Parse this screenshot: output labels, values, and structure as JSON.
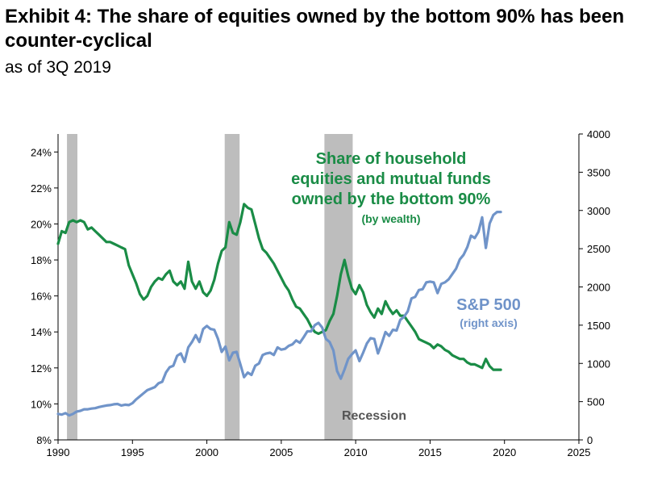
{
  "title": "Exhibit 4: The share of equities owned by the bottom 90% has been counter-cyclical",
  "subtitle": "as of 3Q 2019",
  "colors": {
    "share": "#1a8c46",
    "sp500": "#7094c9",
    "recession": "#bdbdbd",
    "recession_text": "#555555"
  },
  "chart_data": {
    "type": "line",
    "title": "Exhibit 4: The share of equities owned by the bottom 90% has been counter-cyclical",
    "subtitle": "as of 3Q 2019",
    "x_ticks": [
      "1990",
      "1995",
      "2000",
      "2005",
      "2010",
      "2015",
      "2020",
      "2025"
    ],
    "xlim": [
      1990,
      2025
    ],
    "y_left_ticks": [
      "8%",
      "10%",
      "12%",
      "14%",
      "16%",
      "18%",
      "20%",
      "22%",
      "24%"
    ],
    "y_left_lim": [
      8,
      25
    ],
    "y_right_ticks": [
      "0",
      "500",
      "1000",
      "1500",
      "2000",
      "2500",
      "3000",
      "3500",
      "4000"
    ],
    "y_right_lim": [
      0,
      4000
    ],
    "grid": false,
    "recessions": [
      [
        1990.6,
        1991.3
      ],
      [
        2001.2,
        2002.2
      ],
      [
        2007.9,
        2009.8
      ]
    ],
    "recession_label": "Recession",
    "annotations": {
      "share_label": [
        "Share of household",
        "equities and mutual funds",
        "owned by the bottom 90%"
      ],
      "share_sublabel": "(by wealth)",
      "sp_label": "S&P 500",
      "sp_sublabel": "(right axis)"
    },
    "series": [
      {
        "axis": "left",
        "points": [
          [
            1990.0,
            18.9
          ],
          [
            1990.25,
            19.6
          ],
          [
            1990.5,
            19.5
          ],
          [
            1990.75,
            20.1
          ],
          [
            1991.0,
            20.2
          ],
          [
            1991.25,
            20.1
          ],
          [
            1991.5,
            20.2
          ],
          [
            1991.75,
            20.1
          ],
          [
            1992.0,
            19.7
          ],
          [
            1992.25,
            19.8
          ],
          [
            1992.5,
            19.6
          ],
          [
            1992.75,
            19.4
          ],
          [
            1993.0,
            19.2
          ],
          [
            1993.25,
            19.0
          ],
          [
            1993.5,
            19.0
          ],
          [
            1993.75,
            18.9
          ],
          [
            1994.0,
            18.8
          ],
          [
            1994.25,
            18.7
          ],
          [
            1994.5,
            18.6
          ],
          [
            1994.75,
            17.7
          ],
          [
            1995.0,
            17.2
          ],
          [
            1995.25,
            16.7
          ],
          [
            1995.5,
            16.1
          ],
          [
            1995.75,
            15.8
          ],
          [
            1996.0,
            16.0
          ],
          [
            1996.25,
            16.5
          ],
          [
            1996.5,
            16.8
          ],
          [
            1996.75,
            17.0
          ],
          [
            1997.0,
            16.9
          ],
          [
            1997.25,
            17.2
          ],
          [
            1997.5,
            17.4
          ],
          [
            1997.75,
            16.8
          ],
          [
            1998.0,
            16.6
          ],
          [
            1998.25,
            16.8
          ],
          [
            1998.5,
            16.4
          ],
          [
            1998.75,
            17.9
          ],
          [
            1999.0,
            16.8
          ],
          [
            1999.25,
            16.4
          ],
          [
            1999.5,
            16.8
          ],
          [
            1999.75,
            16.2
          ],
          [
            2000.0,
            16.0
          ],
          [
            2000.25,
            16.3
          ],
          [
            2000.5,
            16.9
          ],
          [
            2000.75,
            17.8
          ],
          [
            2001.0,
            18.5
          ],
          [
            2001.25,
            18.7
          ],
          [
            2001.5,
            20.1
          ],
          [
            2001.75,
            19.5
          ],
          [
            2002.0,
            19.4
          ],
          [
            2002.25,
            20.1
          ],
          [
            2002.5,
            21.1
          ],
          [
            2002.75,
            20.9
          ],
          [
            2003.0,
            20.8
          ],
          [
            2003.25,
            20.0
          ],
          [
            2003.5,
            19.2
          ],
          [
            2003.75,
            18.6
          ],
          [
            2004.0,
            18.4
          ],
          [
            2004.25,
            18.1
          ],
          [
            2004.5,
            17.8
          ],
          [
            2004.75,
            17.4
          ],
          [
            2005.0,
            17.0
          ],
          [
            2005.25,
            16.6
          ],
          [
            2005.5,
            16.3
          ],
          [
            2005.75,
            15.8
          ],
          [
            2006.0,
            15.4
          ],
          [
            2006.25,
            15.3
          ],
          [
            2006.5,
            15.0
          ],
          [
            2006.75,
            14.7
          ],
          [
            2007.0,
            14.3
          ],
          [
            2007.25,
            14.0
          ],
          [
            2007.5,
            13.9
          ],
          [
            2007.75,
            14.0
          ],
          [
            2008.0,
            14.1
          ],
          [
            2008.25,
            14.6
          ],
          [
            2008.5,
            15.0
          ],
          [
            2008.75,
            16.0
          ],
          [
            2009.0,
            17.2
          ],
          [
            2009.25,
            18.0
          ],
          [
            2009.5,
            17.1
          ],
          [
            2009.75,
            16.4
          ],
          [
            2010.0,
            16.1
          ],
          [
            2010.25,
            16.6
          ],
          [
            2010.5,
            16.2
          ],
          [
            2010.75,
            15.5
          ],
          [
            2011.0,
            15.1
          ],
          [
            2011.25,
            14.8
          ],
          [
            2011.5,
            15.3
          ],
          [
            2011.75,
            15.0
          ],
          [
            2012.0,
            15.7
          ],
          [
            2012.25,
            15.3
          ],
          [
            2012.5,
            15.0
          ],
          [
            2012.75,
            15.2
          ],
          [
            2013.0,
            14.9
          ],
          [
            2013.25,
            14.9
          ],
          [
            2013.5,
            14.6
          ],
          [
            2013.75,
            14.3
          ],
          [
            2014.0,
            14.0
          ],
          [
            2014.25,
            13.6
          ],
          [
            2014.5,
            13.5
          ],
          [
            2014.75,
            13.4
          ],
          [
            2015.0,
            13.3
          ],
          [
            2015.25,
            13.1
          ],
          [
            2015.5,
            13.3
          ],
          [
            2015.75,
            13.2
          ],
          [
            2016.0,
            13.0
          ],
          [
            2016.25,
            12.9
          ],
          [
            2016.5,
            12.7
          ],
          [
            2016.75,
            12.6
          ],
          [
            2017.0,
            12.5
          ],
          [
            2017.25,
            12.5
          ],
          [
            2017.5,
            12.3
          ],
          [
            2017.75,
            12.2
          ],
          [
            2018.0,
            12.2
          ],
          [
            2018.25,
            12.1
          ],
          [
            2018.5,
            12.0
          ],
          [
            2018.75,
            12.5
          ],
          [
            2019.0,
            12.1
          ],
          [
            2019.25,
            11.9
          ],
          [
            2019.5,
            11.9
          ],
          [
            2019.75,
            11.9
          ]
        ]
      },
      {
        "axis": "right",
        "points": [
          [
            1990.0,
            340
          ],
          [
            1990.25,
            330
          ],
          [
            1990.5,
            350
          ],
          [
            1990.75,
            320
          ],
          [
            1991.0,
            340
          ],
          [
            1991.25,
            370
          ],
          [
            1991.5,
            380
          ],
          [
            1991.75,
            400
          ],
          [
            1992.0,
            400
          ],
          [
            1992.25,
            410
          ],
          [
            1992.5,
            415
          ],
          [
            1992.75,
            430
          ],
          [
            1993.0,
            440
          ],
          [
            1993.25,
            450
          ],
          [
            1993.5,
            455
          ],
          [
            1993.75,
            465
          ],
          [
            1994.0,
            470
          ],
          [
            1994.25,
            450
          ],
          [
            1994.5,
            460
          ],
          [
            1994.75,
            455
          ],
          [
            1995.0,
            480
          ],
          [
            1995.25,
            530
          ],
          [
            1995.5,
            570
          ],
          [
            1995.75,
            610
          ],
          [
            1996.0,
            650
          ],
          [
            1996.25,
            670
          ],
          [
            1996.5,
            690
          ],
          [
            1996.75,
            740
          ],
          [
            1997.0,
            760
          ],
          [
            1997.25,
            880
          ],
          [
            1997.5,
            950
          ],
          [
            1997.75,
            970
          ],
          [
            1998.0,
            1100
          ],
          [
            1998.25,
            1130
          ],
          [
            1998.5,
            1020
          ],
          [
            1998.75,
            1210
          ],
          [
            1999.0,
            1280
          ],
          [
            1999.25,
            1370
          ],
          [
            1999.5,
            1280
          ],
          [
            1999.75,
            1450
          ],
          [
            2000.0,
            1490
          ],
          [
            2000.25,
            1450
          ],
          [
            2000.5,
            1440
          ],
          [
            2000.75,
            1320
          ],
          [
            2001.0,
            1150
          ],
          [
            2001.25,
            1220
          ],
          [
            2001.5,
            1040
          ],
          [
            2001.75,
            1140
          ],
          [
            2002.0,
            1150
          ],
          [
            2002.25,
            990
          ],
          [
            2002.5,
            820
          ],
          [
            2002.75,
            880
          ],
          [
            2003.0,
            850
          ],
          [
            2003.25,
            970
          ],
          [
            2003.5,
            1000
          ],
          [
            2003.75,
            1110
          ],
          [
            2004.0,
            1130
          ],
          [
            2004.25,
            1140
          ],
          [
            2004.5,
            1110
          ],
          [
            2004.75,
            1210
          ],
          [
            2005.0,
            1180
          ],
          [
            2005.25,
            1190
          ],
          [
            2005.5,
            1230
          ],
          [
            2005.75,
            1250
          ],
          [
            2006.0,
            1300
          ],
          [
            2006.25,
            1270
          ],
          [
            2006.5,
            1340
          ],
          [
            2006.75,
            1420
          ],
          [
            2007.0,
            1420
          ],
          [
            2007.25,
            1500
          ],
          [
            2007.5,
            1530
          ],
          [
            2007.75,
            1470
          ],
          [
            2008.0,
            1320
          ],
          [
            2008.25,
            1280
          ],
          [
            2008.5,
            1170
          ],
          [
            2008.75,
            900
          ],
          [
            2009.0,
            800
          ],
          [
            2009.25,
            920
          ],
          [
            2009.5,
            1060
          ],
          [
            2009.75,
            1120
          ],
          [
            2010.0,
            1170
          ],
          [
            2010.25,
            1030
          ],
          [
            2010.5,
            1140
          ],
          [
            2010.75,
            1260
          ],
          [
            2011.0,
            1330
          ],
          [
            2011.25,
            1320
          ],
          [
            2011.5,
            1130
          ],
          [
            2011.75,
            1260
          ],
          [
            2012.0,
            1410
          ],
          [
            2012.25,
            1360
          ],
          [
            2012.5,
            1440
          ],
          [
            2012.75,
            1430
          ],
          [
            2013.0,
            1570
          ],
          [
            2013.25,
            1610
          ],
          [
            2013.5,
            1680
          ],
          [
            2013.75,
            1850
          ],
          [
            2014.0,
            1870
          ],
          [
            2014.25,
            1960
          ],
          [
            2014.5,
            1970
          ],
          [
            2014.75,
            2060
          ],
          [
            2015.0,
            2070
          ],
          [
            2015.25,
            2060
          ],
          [
            2015.5,
            1920
          ],
          [
            2015.75,
            2040
          ],
          [
            2016.0,
            2060
          ],
          [
            2016.25,
            2100
          ],
          [
            2016.5,
            2170
          ],
          [
            2016.75,
            2240
          ],
          [
            2017.0,
            2360
          ],
          [
            2017.25,
            2420
          ],
          [
            2017.5,
            2520
          ],
          [
            2017.75,
            2670
          ],
          [
            2018.0,
            2640
          ],
          [
            2018.25,
            2720
          ],
          [
            2018.5,
            2910
          ],
          [
            2018.75,
            2510
          ],
          [
            2019.0,
            2830
          ],
          [
            2019.25,
            2940
          ],
          [
            2019.5,
            2980
          ],
          [
            2019.75,
            2980
          ]
        ]
      }
    ]
  }
}
